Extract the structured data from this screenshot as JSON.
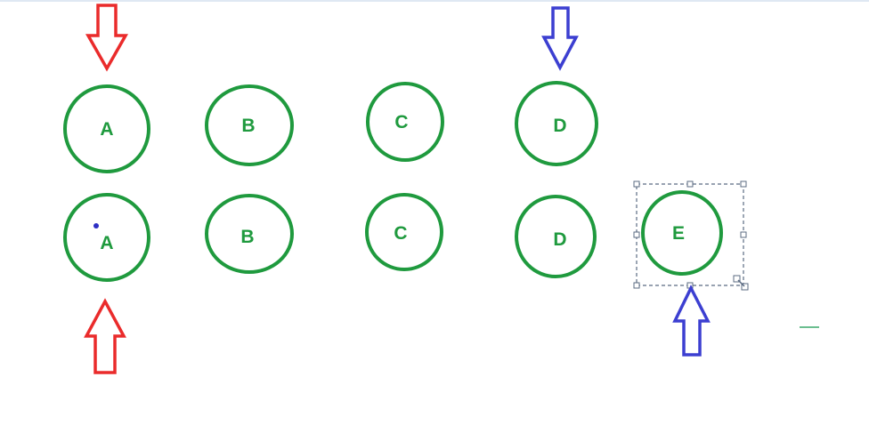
{
  "shapes": {
    "row1": [
      "A",
      "B",
      "C",
      "D"
    ],
    "row2": [
      "A",
      "B",
      "C",
      "D",
      "E"
    ]
  },
  "colors": {
    "circle_stroke": "#1f9a3e",
    "label": "#1f9a3e",
    "red_arrow": "#ea2b2b",
    "blue_arrow": "#3c3fd1",
    "selection": "#5b6b82",
    "dot": "#2d2fc4",
    "stray_mark": "#3aa86a"
  },
  "icons": {
    "arrow_down": "arrow-down-icon",
    "arrow_up": "arrow-up-icon",
    "resize_handle": "resize-handle-icon"
  }
}
